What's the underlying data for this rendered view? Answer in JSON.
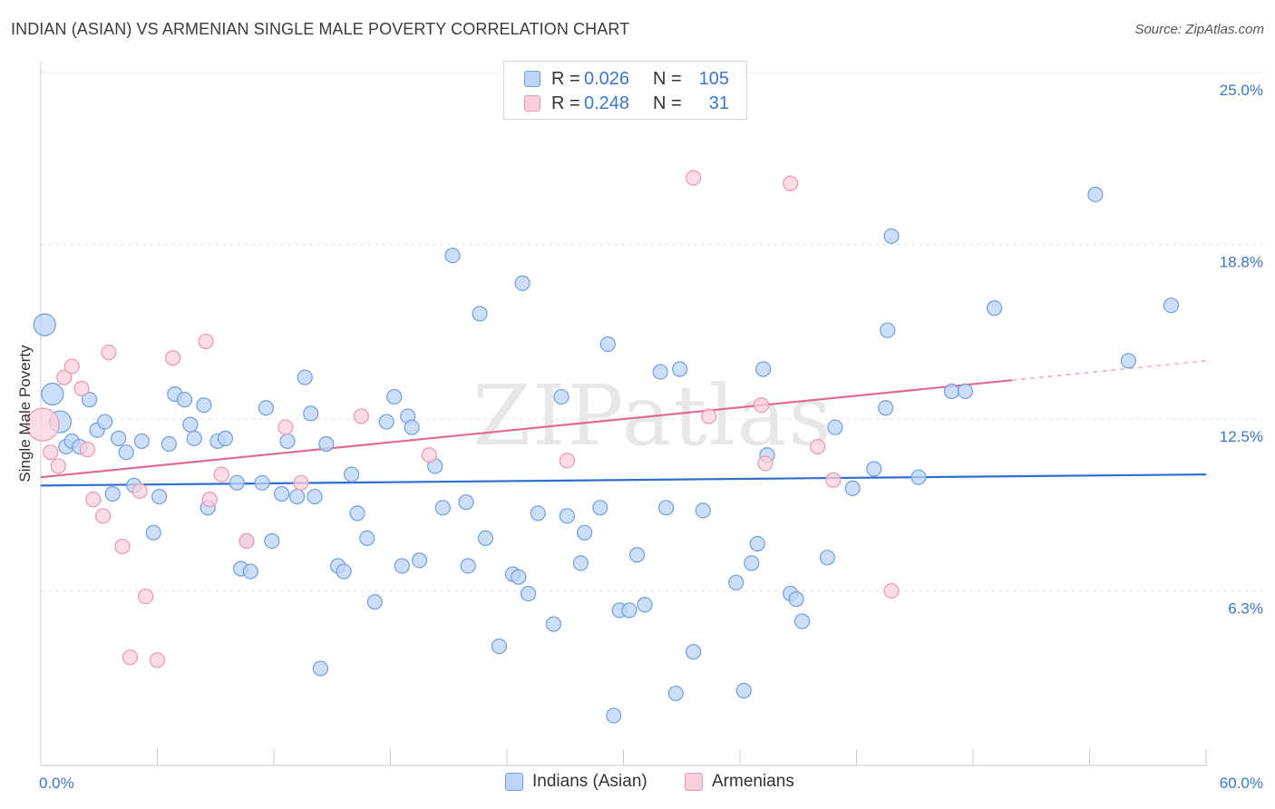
{
  "title": "INDIAN (ASIAN) VS ARMENIAN SINGLE MALE POVERTY CORRELATION CHART",
  "source": "Source: ZipAtlas.com",
  "watermark": "ZIPatlas",
  "legend_top": [
    {
      "r_label": "R =",
      "r_value": "0.026",
      "n_label": "N =",
      "n_value": "105",
      "color": "#6f9fe0",
      "fill": "#bcd4f5"
    },
    {
      "r_label": "R =",
      "r_value": "0.248",
      "n_label": "N =",
      "n_value": "31",
      "color": "#ee96b0",
      "fill": "#fbd0dc"
    }
  ],
  "legend_bottom": [
    {
      "label": "Indians (Asian)",
      "color": "#6f9fe0",
      "fill": "#bcd4f5"
    },
    {
      "label": "Armenians",
      "color": "#ee96b0",
      "fill": "#fbd0dc"
    }
  ],
  "chart_data": {
    "type": "scatter",
    "title": "INDIAN (ASIAN) VS ARMENIAN SINGLE MALE POVERTY CORRELATION CHART",
    "xlabel": "",
    "ylabel": "Single Male Poverty",
    "xlim": [
      0,
      60
    ],
    "ylim": [
      0,
      25.0
    ],
    "x_tick_labels": [
      "0.0%",
      "60.0%"
    ],
    "y_tick_labels": [
      "6.3%",
      "12.5%",
      "18.8%",
      "25.0%"
    ],
    "y_ticks": [
      6.3,
      12.5,
      18.8,
      25.0
    ],
    "grid": "horizontal dashed",
    "legend": "top-center",
    "series": [
      {
        "name": "Indians (Asian)",
        "color": "#6f9fe0",
        "fill": "#bcd4f5",
        "trend": {
          "x": [
            0,
            60
          ],
          "y": [
            10.1,
            10.5
          ],
          "color": "#2f6fcf"
        },
        "points": [
          [
            0.2,
            15.9,
            2
          ],
          [
            0.6,
            13.4,
            2
          ],
          [
            1.0,
            12.4,
            2
          ],
          [
            1.3,
            11.5,
            1
          ],
          [
            1.6,
            11.7,
            1
          ],
          [
            2.0,
            11.5,
            1
          ],
          [
            2.5,
            13.2,
            1
          ],
          [
            2.9,
            12.1,
            1
          ],
          [
            3.3,
            12.4,
            1
          ],
          [
            3.7,
            9.8,
            1
          ],
          [
            4.0,
            11.8,
            1
          ],
          [
            4.4,
            11.3,
            1
          ],
          [
            4.8,
            10.1,
            1
          ],
          [
            5.2,
            11.7,
            1
          ],
          [
            5.8,
            8.4,
            1
          ],
          [
            6.1,
            9.7,
            1
          ],
          [
            6.6,
            11.6,
            1
          ],
          [
            6.9,
            13.4,
            1
          ],
          [
            7.4,
            13.2,
            1
          ],
          [
            7.7,
            12.3,
            1
          ],
          [
            7.9,
            11.8,
            1
          ],
          [
            8.4,
            13.0,
            1
          ],
          [
            8.6,
            9.3,
            1
          ],
          [
            9.1,
            11.7,
            1
          ],
          [
            9.5,
            11.8,
            1
          ],
          [
            10.1,
            10.2,
            1
          ],
          [
            10.3,
            7.1,
            1
          ],
          [
            10.6,
            8.1,
            1
          ],
          [
            10.8,
            7.0,
            1
          ],
          [
            11.4,
            10.2,
            1
          ],
          [
            11.6,
            12.9,
            1
          ],
          [
            11.9,
            8.1,
            1
          ],
          [
            12.4,
            9.8,
            1
          ],
          [
            12.7,
            11.7,
            1
          ],
          [
            13.2,
            9.7,
            1
          ],
          [
            13.6,
            14.0,
            1
          ],
          [
            13.9,
            12.7,
            1
          ],
          [
            14.1,
            9.7,
            1
          ],
          [
            14.4,
            3.5,
            1
          ],
          [
            14.7,
            11.6,
            1
          ],
          [
            15.3,
            7.2,
            1
          ],
          [
            15.6,
            7.0,
            1
          ],
          [
            16.0,
            10.5,
            1
          ],
          [
            16.3,
            9.1,
            1
          ],
          [
            16.8,
            8.2,
            1
          ],
          [
            17.2,
            5.9,
            1
          ],
          [
            17.8,
            12.4,
            1
          ],
          [
            18.2,
            13.3,
            1
          ],
          [
            18.6,
            7.2,
            1
          ],
          [
            18.9,
            12.6,
            1
          ],
          [
            19.1,
            12.2,
            1
          ],
          [
            19.5,
            7.4,
            1
          ],
          [
            20.3,
            10.8,
            1
          ],
          [
            20.7,
            9.3,
            1
          ],
          [
            21.2,
            18.4,
            1
          ],
          [
            21.9,
            9.5,
            1
          ],
          [
            22.0,
            7.2,
            1
          ],
          [
            22.6,
            16.3,
            1
          ],
          [
            22.9,
            8.2,
            1
          ],
          [
            23.6,
            4.3,
            1
          ],
          [
            24.3,
            6.9,
            1
          ],
          [
            24.6,
            6.8,
            1
          ],
          [
            24.8,
            17.4,
            1
          ],
          [
            25.1,
            6.2,
            1
          ],
          [
            25.6,
            9.1,
            1
          ],
          [
            26.4,
            5.1,
            1
          ],
          [
            26.8,
            13.3,
            1
          ],
          [
            27.1,
            9.0,
            1
          ],
          [
            27.8,
            7.3,
            1
          ],
          [
            28.0,
            8.4,
            1
          ],
          [
            28.8,
            9.3,
            1
          ],
          [
            29.2,
            15.2,
            1
          ],
          [
            29.5,
            1.8,
            1
          ],
          [
            29.8,
            5.6,
            1
          ],
          [
            30.3,
            5.6,
            1
          ],
          [
            30.7,
            7.6,
            1
          ],
          [
            31.1,
            5.8,
            1
          ],
          [
            31.9,
            14.2,
            1
          ],
          [
            32.2,
            9.3,
            1
          ],
          [
            32.7,
            2.6,
            1
          ],
          [
            32.9,
            14.3,
            1
          ],
          [
            33.6,
            4.1,
            1
          ],
          [
            34.1,
            9.2,
            1
          ],
          [
            35.8,
            6.6,
            1
          ],
          [
            36.2,
            2.7,
            1
          ],
          [
            36.6,
            7.3,
            1
          ],
          [
            36.9,
            8.0,
            1
          ],
          [
            37.2,
            14.3,
            1
          ],
          [
            37.4,
            11.2,
            1
          ],
          [
            38.6,
            6.2,
            1
          ],
          [
            38.9,
            6.0,
            1
          ],
          [
            39.2,
            5.2,
            1
          ],
          [
            40.5,
            7.5,
            1
          ],
          [
            40.9,
            12.2,
            1
          ],
          [
            41.8,
            10.0,
            1
          ],
          [
            42.9,
            10.7,
            1
          ],
          [
            43.5,
            12.9,
            1
          ],
          [
            43.6,
            15.7,
            1
          ],
          [
            43.8,
            19.1,
            1
          ],
          [
            45.2,
            10.4,
            1
          ],
          [
            46.9,
            13.5,
            1
          ],
          [
            47.6,
            13.5,
            1
          ],
          [
            49.1,
            16.5,
            1
          ],
          [
            54.3,
            20.6,
            1
          ],
          [
            56.0,
            14.6,
            1
          ],
          [
            58.2,
            16.6,
            1
          ]
        ]
      },
      {
        "name": "Armenians",
        "color": "#ee96b0",
        "fill": "#fbd0dc",
        "trend": {
          "x": [
            0,
            50
          ],
          "y": [
            10.4,
            13.9
          ],
          "color": "#e06a92",
          "dash_to": [
            60,
            14.6
          ]
        },
        "points": [
          [
            0.1,
            12.3,
            3
          ],
          [
            0.5,
            11.3,
            1
          ],
          [
            0.9,
            10.8,
            1
          ],
          [
            1.2,
            14.0,
            1
          ],
          [
            1.6,
            14.4,
            1
          ],
          [
            2.1,
            13.6,
            1
          ],
          [
            2.4,
            11.4,
            1
          ],
          [
            2.7,
            9.6,
            1
          ],
          [
            3.2,
            9.0,
            1
          ],
          [
            3.5,
            14.9,
            1
          ],
          [
            4.2,
            7.9,
            1
          ],
          [
            4.6,
            3.9,
            1
          ],
          [
            5.1,
            9.9,
            1
          ],
          [
            5.4,
            6.1,
            1
          ],
          [
            6.0,
            3.8,
            1
          ],
          [
            6.8,
            14.7,
            1
          ],
          [
            8.5,
            15.3,
            1
          ],
          [
            8.7,
            9.6,
            1
          ],
          [
            9.3,
            10.5,
            1
          ],
          [
            10.6,
            8.1,
            1
          ],
          [
            12.6,
            12.2,
            1
          ],
          [
            13.4,
            10.2,
            1
          ],
          [
            16.5,
            12.6,
            1
          ],
          [
            20.0,
            11.2,
            1
          ],
          [
            27.1,
            11.0,
            1
          ],
          [
            33.6,
            21.2,
            1
          ],
          [
            34.4,
            12.6,
            1
          ],
          [
            37.1,
            13.0,
            1
          ],
          [
            37.3,
            10.9,
            1
          ],
          [
            38.6,
            21.0,
            1
          ],
          [
            40.0,
            11.5,
            1
          ],
          [
            40.8,
            10.3,
            1
          ],
          [
            43.8,
            6.3,
            1
          ]
        ]
      }
    ]
  }
}
